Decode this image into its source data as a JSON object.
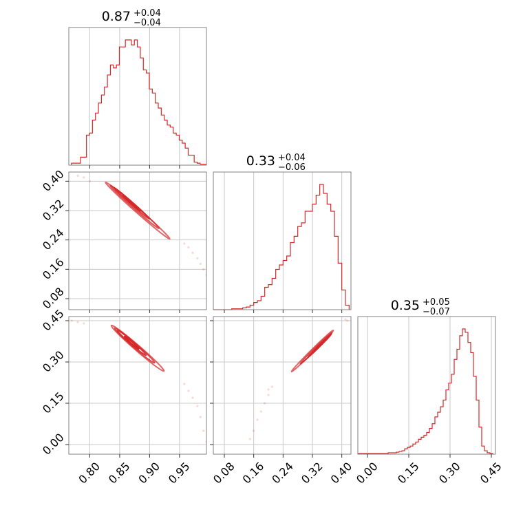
{
  "chart_data": {
    "type": "corner",
    "color": "#d62728",
    "grid": true,
    "parameters": [
      {
        "median": 0.87,
        "err_plus": 0.04,
        "err_minus": 0.04,
        "title_main": "0.87",
        "title_sup": "+0.04",
        "title_sub": "−0.04",
        "range": [
          0.765,
          0.995
        ],
        "ticks": [
          "0.80",
          "0.85",
          "0.90",
          "0.95"
        ],
        "hist_bins": [
          0.772,
          0.777,
          0.782,
          0.787,
          0.792,
          0.797,
          0.802,
          0.807,
          0.812,
          0.817,
          0.822,
          0.827,
          0.832,
          0.837,
          0.842,
          0.847,
          0.852,
          0.857,
          0.862,
          0.867,
          0.872,
          0.877,
          0.882,
          0.887,
          0.892,
          0.897,
          0.902,
          0.907,
          0.912,
          0.917,
          0.922,
          0.927,
          0.932,
          0.937,
          0.942,
          0.947,
          0.952,
          0.957,
          0.962,
          0.967,
          0.972,
          0.977,
          0.982,
          0.987,
          0.992
        ],
        "hist_counts": [
          2,
          2,
          2,
          8,
          8,
          30,
          32,
          45,
          52,
          62,
          70,
          78,
          90,
          100,
          97,
          100,
          118,
          118,
          125,
          125,
          120,
          125,
          118,
          107,
          95,
          92,
          76,
          72,
          62,
          57,
          50,
          45,
          40,
          38,
          32,
          30,
          25,
          22,
          17,
          10,
          10,
          3,
          2,
          1,
          1
        ]
      },
      {
        "median": 0.33,
        "err_plus": 0.04,
        "err_minus": 0.06,
        "title_main": "0.33",
        "title_sup": "+0.04",
        "title_sub": "−0.06",
        "range": [
          0.05,
          0.425
        ],
        "ticks": [
          "0.08",
          "0.16",
          "0.24",
          "0.32",
          "0.40"
        ],
        "hist_bins": [
          0.055,
          0.065,
          0.075,
          0.085,
          0.095,
          0.105,
          0.115,
          0.125,
          0.135,
          0.145,
          0.155,
          0.165,
          0.175,
          0.185,
          0.195,
          0.205,
          0.215,
          0.225,
          0.235,
          0.245,
          0.255,
          0.265,
          0.275,
          0.285,
          0.295,
          0.305,
          0.315,
          0.325,
          0.335,
          0.345,
          0.355,
          0.365,
          0.375,
          0.385,
          0.395,
          0.405,
          0.415
        ],
        "hist_counts": [
          0,
          0,
          0,
          0,
          0,
          1,
          1,
          1,
          2,
          3,
          5,
          8,
          10,
          15,
          25,
          28,
          35,
          45,
          50,
          55,
          60,
          75,
          82,
          93,
          97,
          110,
          110,
          118,
          128,
          140,
          130,
          118,
          110,
          82,
          52,
          22,
          5
        ]
      },
      {
        "median": 0.35,
        "err_plus": 0.05,
        "err_minus": 0.07,
        "title_main": "0.35",
        "title_sup": "+0.05",
        "title_sub": "−0.07",
        "range": [
          -0.035,
          0.465
        ],
        "ticks": [
          "0.00",
          "0.15",
          "0.30",
          "0.45"
        ],
        "hist_bins": [
          -0.03,
          -0.02,
          -0.01,
          0.0,
          0.01,
          0.02,
          0.03,
          0.04,
          0.05,
          0.06,
          0.07,
          0.08,
          0.09,
          0.1,
          0.11,
          0.12,
          0.13,
          0.14,
          0.15,
          0.16,
          0.17,
          0.18,
          0.19,
          0.2,
          0.21,
          0.22,
          0.23,
          0.24,
          0.25,
          0.26,
          0.27,
          0.28,
          0.29,
          0.3,
          0.31,
          0.32,
          0.33,
          0.34,
          0.35,
          0.36,
          0.37,
          0.38,
          0.39,
          0.4,
          0.41,
          0.42,
          0.43,
          0.44,
          0.45
        ],
        "hist_counts": [
          1,
          1,
          1,
          1,
          1,
          1,
          1,
          1,
          1,
          1,
          1,
          2,
          2,
          2,
          3,
          4,
          5,
          8,
          10,
          12,
          15,
          18,
          22,
          25,
          28,
          32,
          38,
          45,
          55,
          62,
          70,
          80,
          95,
          105,
          118,
          140,
          155,
          175,
          185,
          180,
          165,
          150,
          115,
          80,
          40,
          12,
          5,
          2,
          1
        ]
      }
    ],
    "pairs": [
      {
        "x_param": 0,
        "y_param": 1,
        "contours": [
          {
            "center": [
              0.88,
              0.32
            ],
            "semi_major": 0.0938,
            "semi_minor": 0.0045,
            "slope": -1.44
          },
          {
            "center": [
              0.875,
              0.33
            ],
            "semi_major": 0.0712,
            "semi_minor": 0.0035,
            "slope": -1.44
          },
          {
            "center": [
              0.87,
              0.34
            ],
            "semi_major": 0.0512,
            "semi_minor": 0.0025,
            "slope": -1.44
          },
          {
            "center": [
              0.87,
              0.34
            ],
            "semi_major": 0.0255,
            "semi_minor": 0.0013,
            "slope": -1.44
          }
        ],
        "outliers": [
          [
            0.78,
            0.415
          ],
          [
            0.79,
            0.41
          ],
          [
            0.8,
            0.4
          ],
          [
            0.958,
            0.23
          ],
          [
            0.965,
            0.22
          ],
          [
            0.972,
            0.205
          ],
          [
            0.98,
            0.19
          ],
          [
            0.985,
            0.175
          ],
          [
            0.99,
            0.16
          ],
          [
            0.995,
            0.145
          ]
        ]
      },
      {
        "x_param": 0,
        "y_param": 2,
        "contours": [
          {
            "center": [
              0.88,
              0.35
            ],
            "semi_major": 0.0938,
            "semi_minor": 0.006,
            "slope": -1.9
          },
          {
            "center": [
              0.875,
              0.36
            ],
            "semi_major": 0.0712,
            "semi_minor": 0.0046,
            "slope": -1.9
          },
          {
            "center": [
              0.87,
              0.37
            ],
            "semi_major": 0.0512,
            "semi_minor": 0.0033,
            "slope": -1.9
          },
          {
            "center": [
              0.87,
              0.37
            ],
            "semi_major": 0.0255,
            "semi_minor": 0.0017,
            "slope": -1.9
          }
        ],
        "outliers": [
          [
            0.77,
            0.45
          ],
          [
            0.78,
            0.445
          ],
          [
            0.79,
            0.44
          ],
          [
            0.958,
            0.22
          ],
          [
            0.965,
            0.195
          ],
          [
            0.972,
            0.17
          ],
          [
            0.98,
            0.14
          ],
          [
            0.985,
            0.1
          ],
          [
            0.99,
            0.05
          ],
          [
            0.995,
            0.01
          ]
        ]
      },
      {
        "x_param": 1,
        "y_param": 2,
        "contours": [
          {
            "center": [
              0.32,
              0.34
            ],
            "semi_major": 0.0938,
            "semi_minor": 0.0045,
            "slope": 1.32
          },
          {
            "center": [
              0.33,
              0.35
            ],
            "semi_major": 0.0712,
            "semi_minor": 0.0035,
            "slope": 1.32
          },
          {
            "center": [
              0.34,
              0.36
            ],
            "semi_major": 0.0512,
            "semi_minor": 0.0025,
            "slope": 1.32
          },
          {
            "center": [
              0.34,
              0.36
            ],
            "semi_major": 0.0255,
            "semi_minor": 0.0013,
            "slope": 1.32
          }
        ],
        "outliers": [
          [
            0.41,
            0.455
          ],
          [
            0.415,
            0.45
          ],
          [
            0.2,
            0.18
          ],
          [
            0.19,
            0.15
          ],
          [
            0.18,
            0.12
          ],
          [
            0.17,
            0.09
          ],
          [
            0.16,
            0.05
          ],
          [
            0.15,
            0.02
          ],
          [
            0.2,
            0.2
          ],
          [
            0.21,
            0.21
          ]
        ]
      }
    ]
  }
}
